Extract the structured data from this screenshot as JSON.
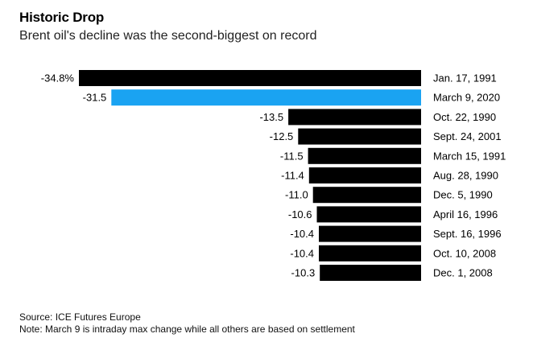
{
  "header": {
    "title": "Historic Drop",
    "subtitle": "Brent oil's decline was the second-biggest on record"
  },
  "footer": {
    "source": "Source: ICE Futures Europe",
    "note": "Note: March 9 is intraday max change while all others are based on settlement"
  },
  "colors": {
    "bar_default": "#000000",
    "bar_highlight": "#1AA3F2",
    "text": "#000000"
  },
  "chart_data": {
    "type": "bar",
    "orientation": "horizontal",
    "categories": [
      "Jan. 17, 1991",
      "March 9, 2020",
      "Oct. 22, 1990",
      "Sept. 24, 2001",
      "March 15, 1991",
      "Aug. 28, 1990",
      "Dec. 5, 1990",
      "April 16, 1996",
      "Sept. 16, 1996",
      "Oct. 10, 2008",
      "Dec. 1, 2008"
    ],
    "values": [
      -34.8,
      -31.5,
      -13.5,
      -12.5,
      -11.5,
      -11.4,
      -11.0,
      -10.6,
      -10.4,
      -10.4,
      -10.3
    ],
    "value_labels": [
      "-34.8%",
      "-31.5",
      "-13.5",
      "-12.5",
      "-11.5",
      "-11.4",
      "-11.0",
      "-10.6",
      "-10.4",
      "-10.4",
      "-10.3"
    ],
    "highlight_category": "March 9, 2020",
    "xlim": [
      -34.8,
      0
    ],
    "grid": false,
    "legend": false
  }
}
